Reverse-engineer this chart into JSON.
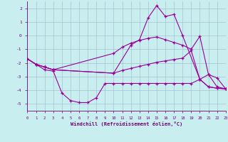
{
  "xlabel": "Windchill (Refroidissement éolien,°C)",
  "xlim": [
    0,
    23
  ],
  "ylim": [
    -5.5,
    2.5
  ],
  "yticks": [
    -5,
    -4,
    -3,
    -2,
    -1,
    0,
    1,
    2
  ],
  "xticks": [
    0,
    1,
    2,
    3,
    4,
    5,
    6,
    7,
    8,
    9,
    10,
    11,
    12,
    13,
    14,
    15,
    16,
    17,
    18,
    19,
    20,
    21,
    22,
    23
  ],
  "bg_color": "#c8eef0",
  "grid_color": "#a0b8c8",
  "line_color": "#990099",
  "lines": [
    {
      "x": [
        0,
        1,
        2,
        3,
        4,
        5,
        6,
        7,
        8,
        9,
        10,
        11,
        12,
        13,
        14,
        15,
        16,
        17,
        18,
        19,
        20,
        21,
        22,
        23
      ],
      "y": [
        -1.7,
        -2.1,
        -2.5,
        -2.6,
        -4.2,
        -4.75,
        -4.9,
        -4.9,
        -4.55,
        -3.5,
        -3.5,
        -3.5,
        -3.5,
        -3.5,
        -3.5,
        -3.5,
        -3.5,
        -3.5,
        -3.5,
        -3.5,
        -3.2,
        -3.75,
        -3.85,
        -3.9
      ]
    },
    {
      "x": [
        0,
        1,
        2,
        3,
        10,
        11,
        12,
        13,
        14,
        15,
        16,
        17,
        18,
        19,
        20,
        21,
        22,
        23
      ],
      "y": [
        -1.7,
        -2.1,
        -2.3,
        -2.5,
        -2.75,
        -2.55,
        -2.4,
        -2.25,
        -2.1,
        -1.95,
        -1.85,
        -1.75,
        -1.65,
        -1.1,
        -3.2,
        -3.75,
        -3.85,
        -3.9
      ]
    },
    {
      "x": [
        0,
        1,
        2,
        3,
        10,
        11,
        12,
        13,
        14,
        15,
        16,
        17,
        18,
        19,
        20,
        21,
        22,
        23
      ],
      "y": [
        -1.7,
        -2.1,
        -2.3,
        -2.5,
        -1.3,
        -0.85,
        -0.55,
        -0.35,
        -0.2,
        -0.1,
        -0.3,
        -0.5,
        -0.7,
        -1.0,
        -0.05,
        -2.85,
        -3.75,
        -3.9
      ]
    },
    {
      "x": [
        0,
        1,
        2,
        3,
        10,
        12,
        13,
        14,
        15,
        16,
        17,
        18,
        20,
        21,
        22,
        23
      ],
      "y": [
        -1.7,
        -2.1,
        -2.3,
        -2.5,
        -2.75,
        -0.7,
        -0.3,
        1.3,
        2.2,
        1.4,
        1.55,
        0.0,
        -3.2,
        -2.85,
        -3.1,
        -3.9
      ]
    }
  ]
}
